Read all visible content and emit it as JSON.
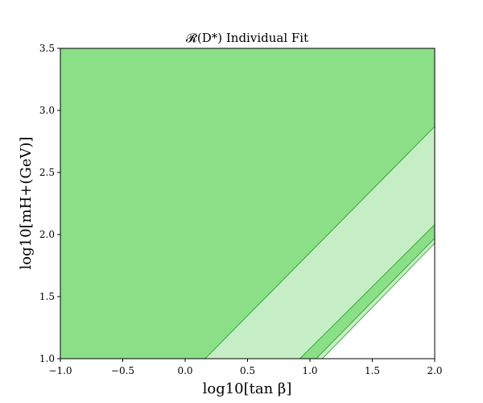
{
  "chart_data": {
    "type": "area",
    "title": "𝓡(D*) Individual Fit",
    "xlabel": "log10[tan β]",
    "ylabel": "log10[mH+(GeV)]",
    "xlim": [
      -1.0,
      2.0
    ],
    "ylim": [
      1.0,
      3.5
    ],
    "grid": false,
    "x_ticks": [
      "−1.0",
      "−0.5",
      "0.0",
      "0.5",
      "1.0",
      "1.5",
      "2.0"
    ],
    "y_ticks": [
      "1.0",
      "1.5",
      "2.0",
      "2.5",
      "3.0",
      "3.5"
    ],
    "regions": [
      {
        "level": "dark",
        "color": "#8bdf87",
        "points": [
          [
            -1.0,
            1.0
          ],
          [
            0.16,
            1.0
          ],
          [
            2.0,
            2.87
          ],
          [
            2.0,
            3.5
          ],
          [
            -1.0,
            3.5
          ]
        ]
      },
      {
        "level": "light",
        "color": "#c6eec4",
        "points": [
          [
            0.16,
            1.0
          ],
          [
            0.92,
            1.0
          ],
          [
            2.0,
            2.08
          ],
          [
            2.0,
            2.87
          ]
        ]
      },
      {
        "level": "dark",
        "color": "#8bdf87",
        "points": [
          [
            0.92,
            1.0
          ],
          [
            1.05,
            1.0
          ],
          [
            2.0,
            1.97
          ],
          [
            2.0,
            2.08
          ]
        ]
      },
      {
        "level": "light",
        "color": "#c6eec4",
        "points": [
          [
            1.05,
            1.0
          ],
          [
            1.1,
            1.0
          ],
          [
            2.0,
            1.93
          ],
          [
            2.0,
            1.97
          ]
        ]
      }
    ],
    "boundary_color": "#3aa63a"
  }
}
